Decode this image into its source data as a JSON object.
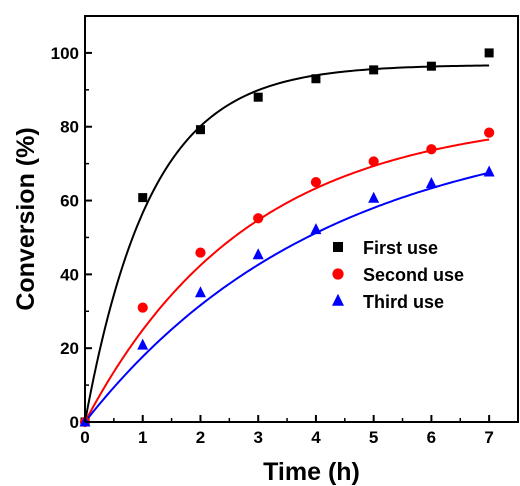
{
  "chart_data": {
    "type": "scatter",
    "title": "",
    "xlabel": "Time (h)",
    "ylabel": "Conversion (%)",
    "xlim": [
      0,
      7.5
    ],
    "ylim": [
      0,
      110
    ],
    "xticks": [
      0,
      1,
      2,
      3,
      4,
      5,
      6,
      7
    ],
    "yticks": [
      0,
      20,
      40,
      60,
      80,
      100
    ],
    "grid": false,
    "legend_position": "center-right",
    "series": [
      {
        "name": "First use",
        "marker": "square",
        "color": "#000000",
        "x": [
          0,
          1,
          2,
          3,
          4,
          5,
          6,
          7
        ],
        "y": [
          0,
          60.8,
          79.2,
          88.0,
          93.0,
          95.4,
          96.4,
          100.0
        ],
        "fit": {
          "model": "exponential-rise",
          "ymax": 96.8,
          "k": 0.88,
          "line_color": "#000000"
        }
      },
      {
        "name": "Second use",
        "marker": "circle",
        "color": "#ff0000",
        "x": [
          0,
          1,
          2,
          3,
          4,
          5,
          6,
          7
        ],
        "y": [
          0,
          31.0,
          45.9,
          55.2,
          65.0,
          70.6,
          73.9,
          78.4
        ],
        "fit": {
          "model": "exponential-rise",
          "ymax": 83.5,
          "k": 0.355,
          "line_color": "#ff0000"
        }
      },
      {
        "name": "Third use",
        "marker": "triangle",
        "color": "#0000ff",
        "x": [
          0,
          1,
          2,
          3,
          4,
          5,
          6,
          7
        ],
        "y": [
          0,
          20.8,
          35.0,
          45.3,
          52.1,
          60.6,
          64.6,
          67.7
        ],
        "fit": {
          "model": "exponential-rise",
          "ymax": 83.0,
          "k": 0.24,
          "line_color": "#0000ff"
        }
      }
    ]
  }
}
